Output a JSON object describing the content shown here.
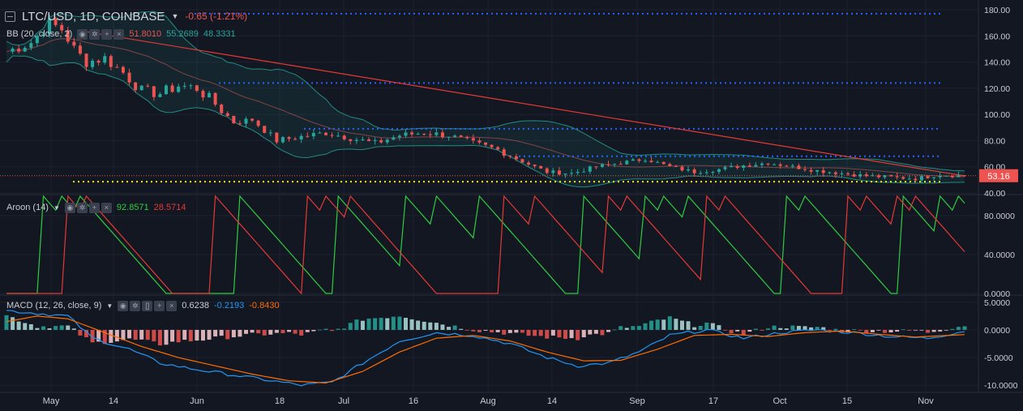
{
  "header": {
    "symbol": "LTC/USD, 1D, COINBASE",
    "change": "-0.65 (-1.21%)"
  },
  "indicators": {
    "bb": {
      "label": "BB (20, close, 2)",
      "v1": "51.8010",
      "v2": "55.2689",
      "v3": "48.3331"
    },
    "aroon": {
      "label": "Aroon (14)",
      "up": "92.8571",
      "down": "28.5714"
    },
    "macd": {
      "label": "MACD (12, 26, close, 9)",
      "hist": "0.6238",
      "macd": "-0.2193",
      "signal": "-0.8430"
    }
  },
  "price_tag": "53.16",
  "colors": {
    "background": "#131722",
    "up": "#26a69a",
    "down": "#ef5350",
    "aroon_up": "#2ecc40",
    "aroon_down": "#e53935",
    "macd_line": "#2196f3",
    "signal_line": "#ff6d00",
    "dotted_blue": "#2962ff",
    "dotted_yellow": "#f5e50a",
    "trend_red": "#e53935"
  },
  "chart_data": [
    {
      "type": "candlestick",
      "title": "LTC/USD, 1D, COINBASE",
      "ylim": [
        40,
        180
      ],
      "y_ticks": [
        "180.00",
        "160.00",
        "140.00",
        "120.00",
        "100.00",
        "80.00",
        "60.00",
        "40.00"
      ],
      "x_tick_labels": [
        "May",
        "14",
        "Jun",
        "18",
        "Jul",
        "16",
        "Aug",
        "14",
        "Sep",
        "17",
        "Oct",
        "15",
        "Nov"
      ],
      "close_path": [
        {
          "x": 0,
          "y": 148
        },
        {
          "x": 4,
          "y": 155
        },
        {
          "x": 7,
          "y": 170
        },
        {
          "x": 9,
          "y": 165
        },
        {
          "x": 11,
          "y": 150
        },
        {
          "x": 13,
          "y": 140
        },
        {
          "x": 16,
          "y": 143
        },
        {
          "x": 19,
          "y": 132
        },
        {
          "x": 22,
          "y": 118
        },
        {
          "x": 25,
          "y": 116
        },
        {
          "x": 28,
          "y": 122
        },
        {
          "x": 31,
          "y": 120
        },
        {
          "x": 34,
          "y": 108
        },
        {
          "x": 37,
          "y": 94
        },
        {
          "x": 40,
          "y": 96
        },
        {
          "x": 44,
          "y": 80
        },
        {
          "x": 48,
          "y": 83
        },
        {
          "x": 52,
          "y": 86
        },
        {
          "x": 56,
          "y": 82
        },
        {
          "x": 60,
          "y": 78
        },
        {
          "x": 64,
          "y": 84
        },
        {
          "x": 68,
          "y": 86
        },
        {
          "x": 72,
          "y": 84
        },
        {
          "x": 76,
          "y": 78
        },
        {
          "x": 80,
          "y": 73
        },
        {
          "x": 84,
          "y": 64
        },
        {
          "x": 88,
          "y": 56
        },
        {
          "x": 92,
          "y": 55
        },
        {
          "x": 96,
          "y": 60
        },
        {
          "x": 100,
          "y": 63
        },
        {
          "x": 104,
          "y": 66
        },
        {
          "x": 108,
          "y": 60
        },
        {
          "x": 112,
          "y": 56
        },
        {
          "x": 116,
          "y": 58
        },
        {
          "x": 120,
          "y": 61
        },
        {
          "x": 124,
          "y": 63
        },
        {
          "x": 128,
          "y": 60
        },
        {
          "x": 132,
          "y": 57
        },
        {
          "x": 136,
          "y": 55
        },
        {
          "x": 140,
          "y": 53
        },
        {
          "x": 144,
          "y": 52
        },
        {
          "x": 148,
          "y": 51
        },
        {
          "x": 152,
          "y": 54
        },
        {
          "x": 155,
          "y": 53.16
        }
      ],
      "horizontal_levels": [
        {
          "y": 177,
          "color": "blue"
        },
        {
          "y": 124,
          "color": "blue"
        },
        {
          "y": 89,
          "color": "blue"
        },
        {
          "y": 68,
          "color": "blue"
        },
        {
          "y": 48.6,
          "color": "yellow"
        }
      ],
      "trend_line": [
        {
          "x": 0,
          "y": 173
        },
        {
          "x": 156,
          "y": 53
        }
      ],
      "last_price": 53.16
    },
    {
      "type": "line",
      "title": "Aroon (14)",
      "ylim": [
        0,
        100
      ],
      "y_ticks": [
        "80.0000",
        "40.0000",
        "0.0000"
      ]
    },
    {
      "type": "bar",
      "title": "MACD (12, 26, close, 9)",
      "ylim": [
        -11,
        6
      ],
      "y_ticks": [
        "5.0000",
        "0.0000",
        "-5.0000",
        "-10.0000"
      ],
      "macd_path": [
        {
          "x": 0,
          "y": 3.5
        },
        {
          "x": 5,
          "y": 3
        },
        {
          "x": 10,
          "y": 2.5
        },
        {
          "x": 14,
          "y": -1.5
        },
        {
          "x": 20,
          "y": -3.5
        },
        {
          "x": 25,
          "y": -6
        },
        {
          "x": 30,
          "y": -7
        },
        {
          "x": 36,
          "y": -8
        },
        {
          "x": 42,
          "y": -9
        },
        {
          "x": 48,
          "y": -10
        },
        {
          "x": 53,
          "y": -9.5
        },
        {
          "x": 58,
          "y": -6
        },
        {
          "x": 64,
          "y": -2
        },
        {
          "x": 70,
          "y": -0.5
        },
        {
          "x": 76,
          "y": -1
        },
        {
          "x": 82,
          "y": -2.5
        },
        {
          "x": 88,
          "y": -5
        },
        {
          "x": 93,
          "y": -6.5
        },
        {
          "x": 98,
          "y": -6
        },
        {
          "x": 103,
          "y": -4
        },
        {
          "x": 108,
          "y": -1
        },
        {
          "x": 114,
          "y": 0
        },
        {
          "x": 120,
          "y": -1.5
        },
        {
          "x": 126,
          "y": -0.5
        },
        {
          "x": 132,
          "y": 0
        },
        {
          "x": 138,
          "y": -0.5
        },
        {
          "x": 144,
          "y": -1.2
        },
        {
          "x": 150,
          "y": -1.5
        },
        {
          "x": 156,
          "y": -0.2
        }
      ],
      "signal_path": [
        {
          "x": 0,
          "y": 1.5
        },
        {
          "x": 5,
          "y": 2.5
        },
        {
          "x": 10,
          "y": 2
        },
        {
          "x": 16,
          "y": -0.5
        },
        {
          "x": 22,
          "y": -3
        },
        {
          "x": 28,
          "y": -5
        },
        {
          "x": 34,
          "y": -6.5
        },
        {
          "x": 40,
          "y": -8
        },
        {
          "x": 46,
          "y": -9.2
        },
        {
          "x": 52,
          "y": -9.6
        },
        {
          "x": 58,
          "y": -7.5
        },
        {
          "x": 64,
          "y": -4
        },
        {
          "x": 70,
          "y": -1.5
        },
        {
          "x": 76,
          "y": -1
        },
        {
          "x": 82,
          "y": -2
        },
        {
          "x": 88,
          "y": -4
        },
        {
          "x": 94,
          "y": -5.6
        },
        {
          "x": 100,
          "y": -5.5
        },
        {
          "x": 106,
          "y": -3.5
        },
        {
          "x": 112,
          "y": -1
        },
        {
          "x": 118,
          "y": -0.8
        },
        {
          "x": 124,
          "y": -1.2
        },
        {
          "x": 130,
          "y": -0.5
        },
        {
          "x": 136,
          "y": -0.2
        },
        {
          "x": 142,
          "y": -0.8
        },
        {
          "x": 148,
          "y": -1.3
        },
        {
          "x": 156,
          "y": -0.84
        }
      ]
    }
  ]
}
